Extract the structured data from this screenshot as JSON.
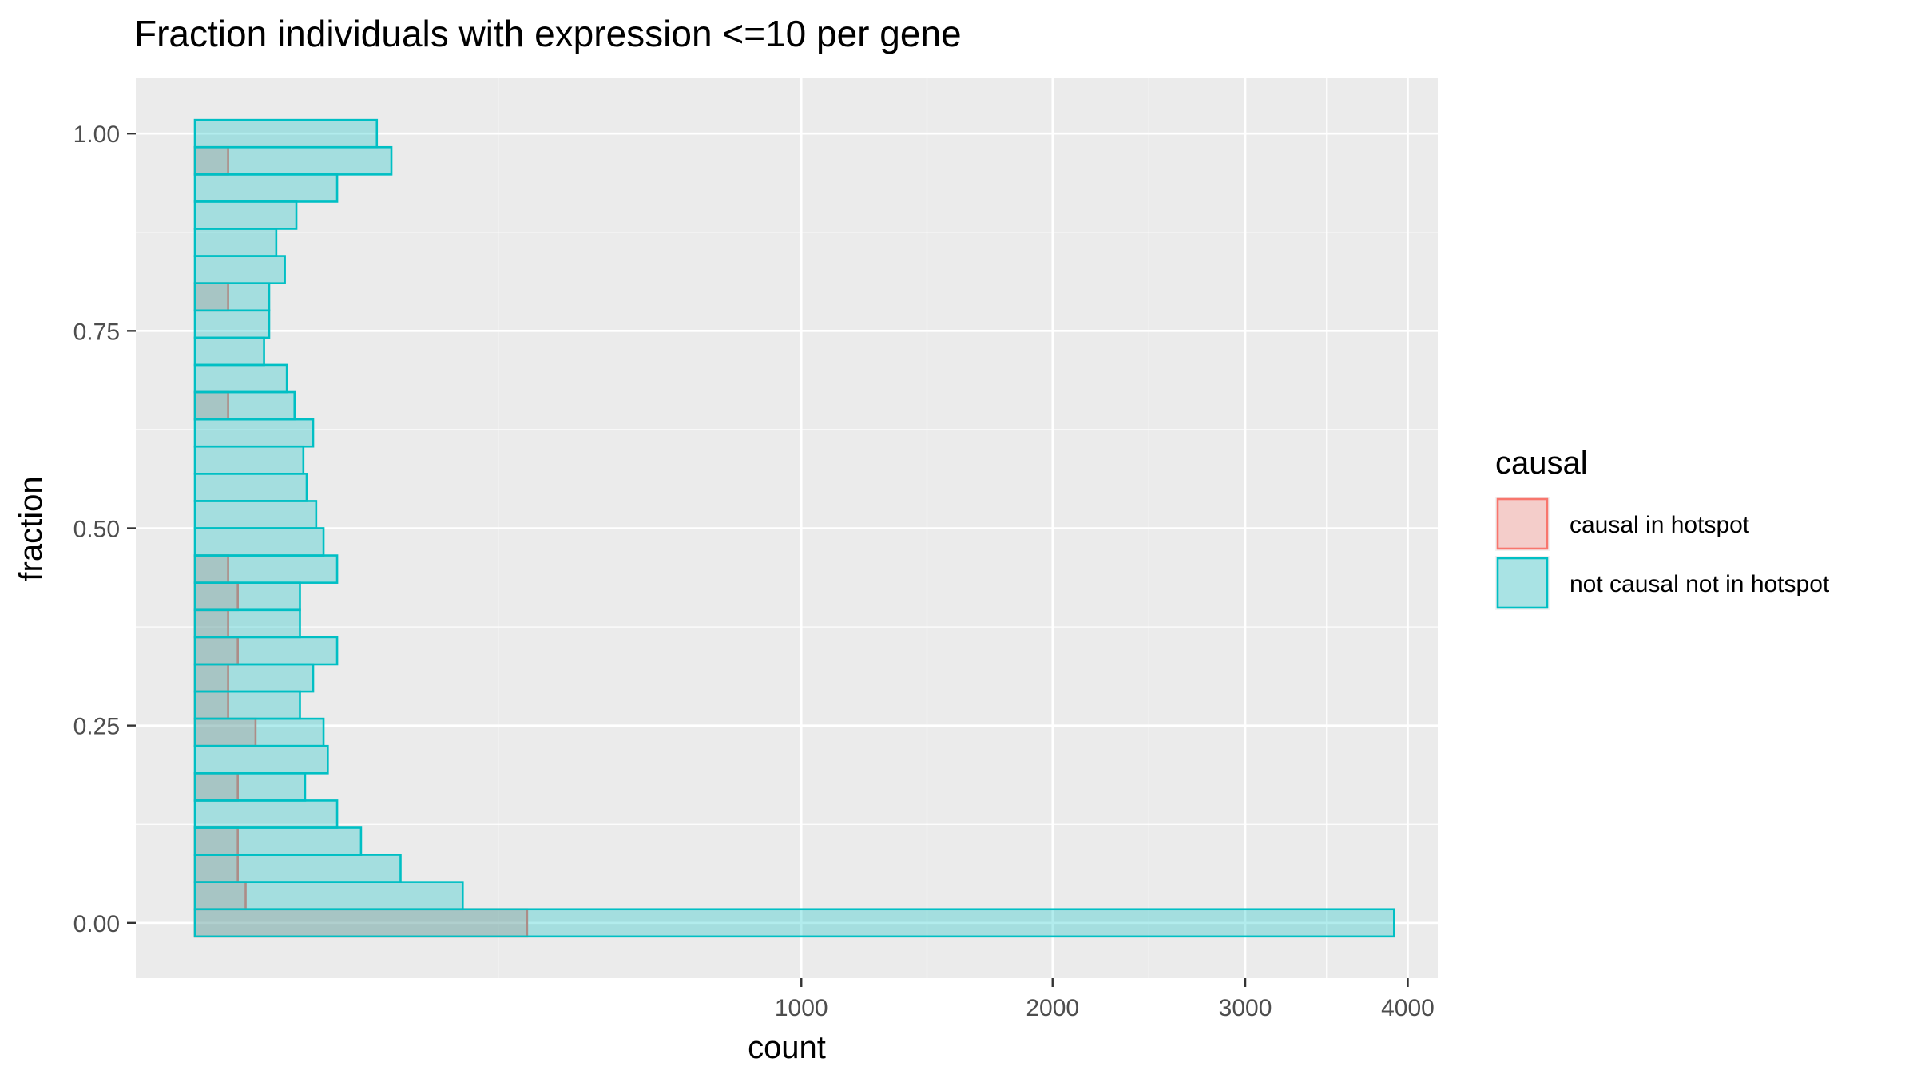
{
  "chart_data": {
    "type": "bar",
    "orientation": "horizontal",
    "title": "Fraction individuals with expression <=10 per gene",
    "xlabel": "count",
    "ylabel": "fraction",
    "x_scale": "sqrt",
    "xlim": [
      0,
      4200
    ],
    "ylim": [
      -0.07,
      1.07
    ],
    "x_ticks": [
      1000,
      2000,
      3000,
      4000
    ],
    "y_ticks": [
      0.0,
      0.25,
      0.5,
      0.75,
      1.0
    ],
    "y_tick_labels": [
      "0.00",
      "0.25",
      "0.50",
      "0.75",
      "1.00"
    ],
    "grid": true,
    "bin_width": 0.0345,
    "legend": {
      "title": "causal",
      "position": "right",
      "entries": [
        "causal in hotspot",
        "not causal not in hotspot"
      ]
    },
    "series": [
      {
        "name": "causal in hotspot",
        "color": "#F8766D",
        "fill": "#F8766D",
        "y": [
          0.0,
          0.0345,
          0.069,
          0.1034,
          0.1379,
          0.1724,
          0.2069,
          0.2414,
          0.2759,
          0.3103,
          0.3448,
          0.3793,
          0.4138,
          0.4483,
          0.4828,
          0.5172,
          0.5517,
          0.5862,
          0.6207,
          0.6552,
          0.6897,
          0.7241,
          0.7586,
          0.7931,
          0.8276,
          0.8621,
          0.8966,
          0.931,
          0.9655,
          1.0
        ],
        "values": [
          300,
          7,
          5,
          5,
          0,
          5,
          0,
          10,
          3,
          3,
          5,
          3,
          5,
          3,
          0,
          0,
          0,
          0,
          0,
          3,
          0,
          0,
          0,
          3,
          0,
          0,
          0,
          0,
          3,
          0
        ]
      },
      {
        "name": "not causal not in hotspot",
        "color": "#00BFC4",
        "fill": "#00BFC4",
        "y": [
          0.0,
          0.0345,
          0.069,
          0.1034,
          0.1379,
          0.1724,
          0.2069,
          0.2414,
          0.2759,
          0.3103,
          0.3448,
          0.3793,
          0.4138,
          0.4483,
          0.4828,
          0.5172,
          0.5517,
          0.5862,
          0.6207,
          0.6552,
          0.6897,
          0.7241,
          0.7586,
          0.7931,
          0.8276,
          0.8621,
          0.8966,
          0.931,
          0.9655,
          1.0
        ],
        "values": [
          3910,
          195,
          115,
          75,
          55,
          33,
          48,
          45,
          30,
          38,
          55,
          30,
          30,
          55,
          45,
          40,
          34,
          32,
          38,
          27,
          23,
          13,
          15,
          15,
          22,
          18,
          28,
          55,
          105,
          90
        ]
      }
    ]
  }
}
